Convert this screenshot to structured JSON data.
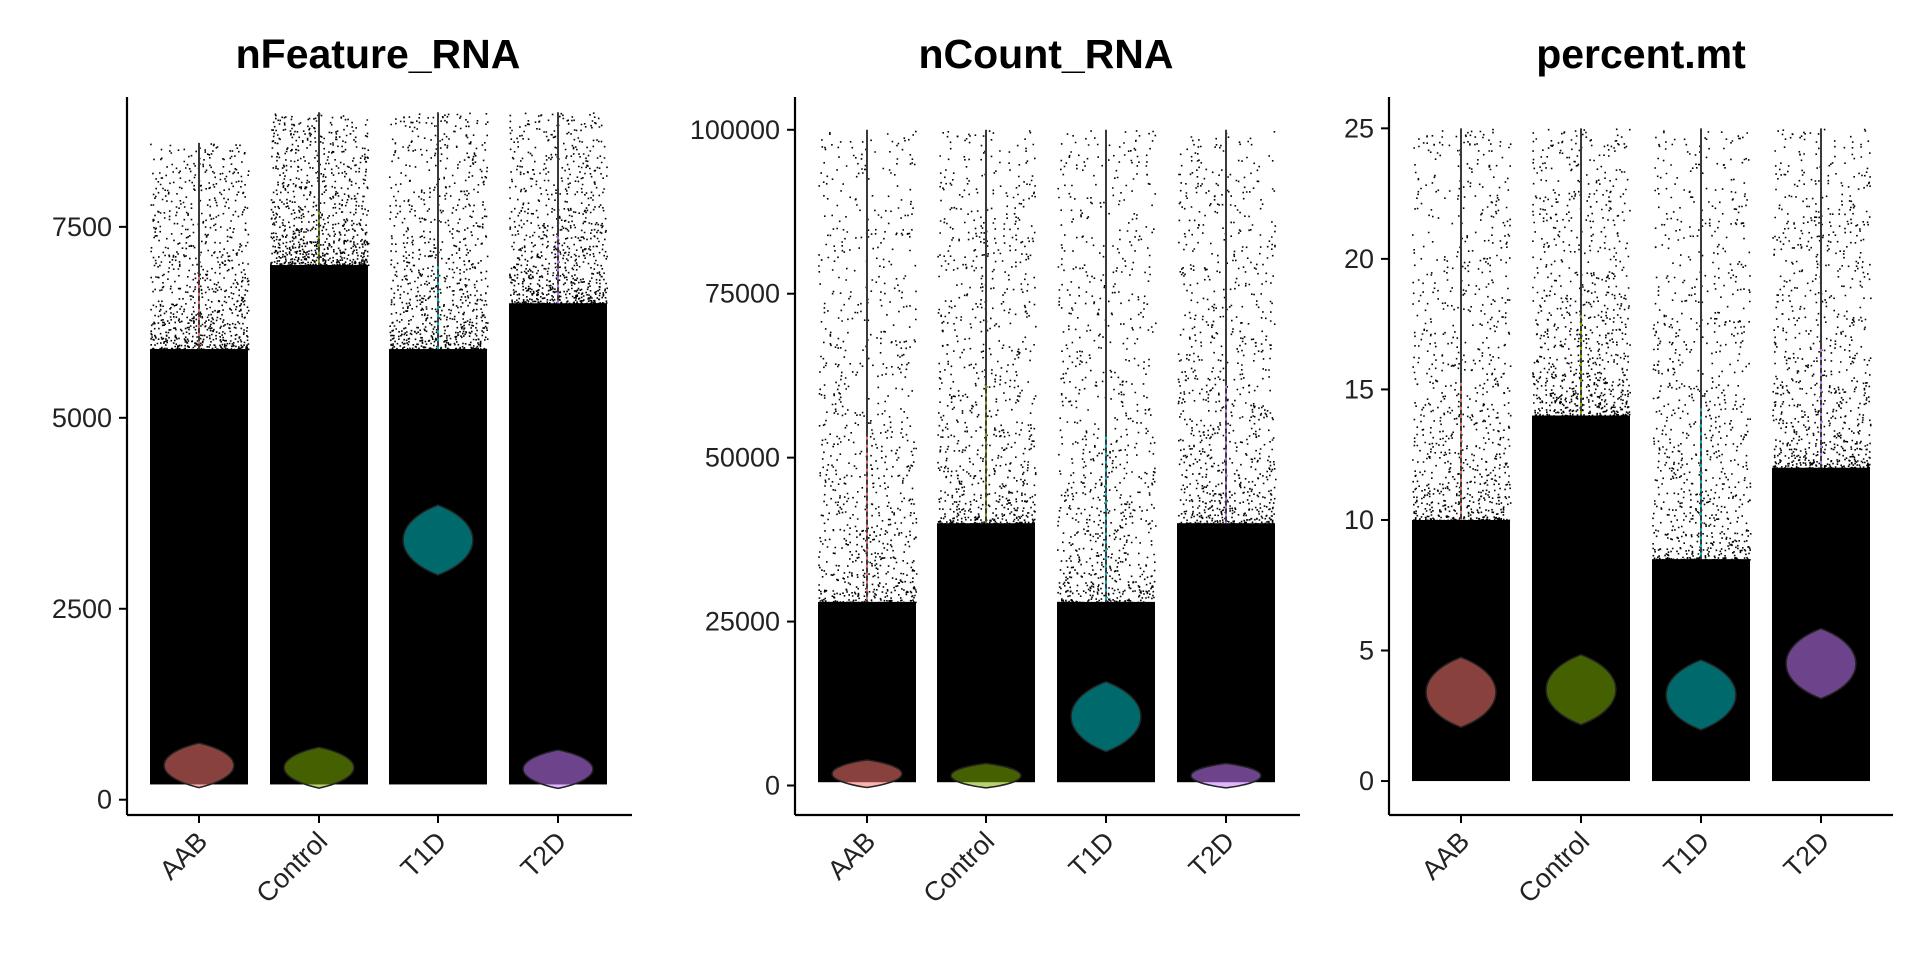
{
  "chart_data": [
    {
      "type": "violin",
      "title": "nFeature_RNA",
      "xlabel": "",
      "ylabel": "",
      "categories": [
        "AAB",
        "Control",
        "T1D",
        "T2D"
      ],
      "ylim": [
        -200,
        9200
      ],
      "yticks": [
        0,
        2500,
        5000,
        7500
      ],
      "ytick_labels": [
        "0",
        "2500",
        "5000",
        "7500"
      ],
      "points_shown": true,
      "grid": false,
      "legend": "none",
      "series": [
        {
          "category": "AAB",
          "color": "#F8766D",
          "min": 200,
          "max": 8600,
          "mode": 450,
          "dense_top": 5900,
          "scattered_top": 8600
        },
        {
          "category": "Control",
          "color": "#7CAE00",
          "min": 200,
          "max": 9000,
          "mode": 420,
          "dense_top": 7000,
          "scattered_top": 9000
        },
        {
          "category": "T1D",
          "color": "#00BFC4",
          "min": 200,
          "max": 9000,
          "mode": 3400,
          "dense_top": 5900,
          "scattered_top": 9000
        },
        {
          "category": "T2D",
          "color": "#C77CFF",
          "min": 200,
          "max": 9000,
          "mode": 400,
          "dense_top": 6500,
          "scattered_top": 9000
        }
      ]
    },
    {
      "type": "violin",
      "title": "nCount_RNA",
      "xlabel": "",
      "ylabel": "",
      "categories": [
        "AAB",
        "Control",
        "T1D",
        "T2D"
      ],
      "ylim": [
        -4500,
        105000
      ],
      "yticks": [
        0,
        25000,
        50000,
        75000,
        100000
      ],
      "ytick_labels": [
        "0",
        "25000",
        "50000",
        "75000",
        "100000"
      ],
      "points_shown": true,
      "grid": false,
      "legend": "none",
      "series": [
        {
          "category": "AAB",
          "color": "#F8766D",
          "min": 500,
          "max": 100000,
          "mode": 1800,
          "dense_top": 28000,
          "scattered_top": 100000
        },
        {
          "category": "Control",
          "color": "#7CAE00",
          "min": 500,
          "max": 100000,
          "mode": 1500,
          "dense_top": 40000,
          "scattered_top": 100000
        },
        {
          "category": "T1D",
          "color": "#00BFC4",
          "min": 500,
          "max": 100000,
          "mode": 10500,
          "dense_top": 28000,
          "scattered_top": 100000
        },
        {
          "category": "T2D",
          "color": "#C77CFF",
          "min": 500,
          "max": 100000,
          "mode": 1500,
          "dense_top": 40000,
          "scattered_top": 100000
        }
      ]
    },
    {
      "type": "violin",
      "title": "percent.mt",
      "xlabel": "",
      "ylabel": "",
      "categories": [
        "AAB",
        "Control",
        "T1D",
        "T2D"
      ],
      "ylim": [
        -1.3,
        26.2
      ],
      "yticks": [
        0,
        5,
        10,
        15,
        20,
        25
      ],
      "ytick_labels": [
        "0",
        "5",
        "10",
        "15",
        "20",
        "25"
      ],
      "points_shown": true,
      "grid": false,
      "legend": "none",
      "series": [
        {
          "category": "AAB",
          "color": "#F8766D",
          "min": 0,
          "max": 25,
          "mode": 3.4,
          "dense_top": 10,
          "scattered_top": 25
        },
        {
          "category": "Control",
          "color": "#7CAE00",
          "min": 0,
          "max": 25,
          "mode": 3.5,
          "dense_top": 14,
          "scattered_top": 25
        },
        {
          "category": "T1D",
          "color": "#00BFC4",
          "min": 0,
          "max": 25,
          "mode": 3.3,
          "dense_top": 8.5,
          "scattered_top": 25
        },
        {
          "category": "T2D",
          "color": "#C77CFF",
          "min": 0,
          "max": 25,
          "mode": 4.5,
          "dense_top": 12,
          "scattered_top": 25
        }
      ]
    }
  ]
}
